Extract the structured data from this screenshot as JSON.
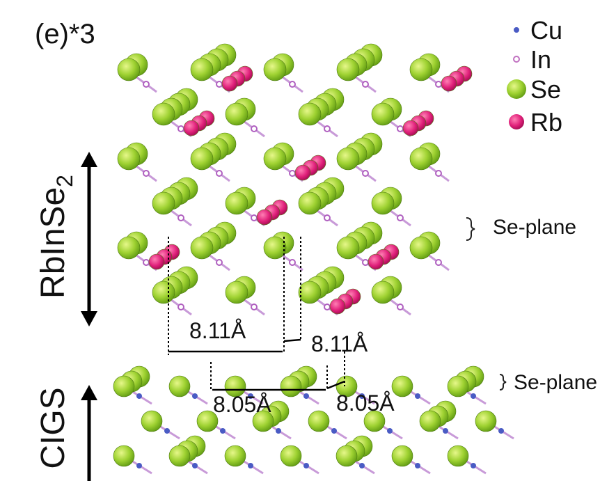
{
  "figure": {
    "panel_label": "(e)*3",
    "legend": [
      "Cu",
      "In",
      "Se",
      "Rb"
    ],
    "layers": [
      {
        "label": "RbInSe",
        "label_sub": "2"
      },
      {
        "label": "CIGS"
      }
    ],
    "se_plane_labels": [
      "Se-plane",
      "Se-plane"
    ],
    "lattice_labels": [
      "8.11Å",
      "8.11Å",
      "8.05Å",
      "8.05Å"
    ]
  }
}
